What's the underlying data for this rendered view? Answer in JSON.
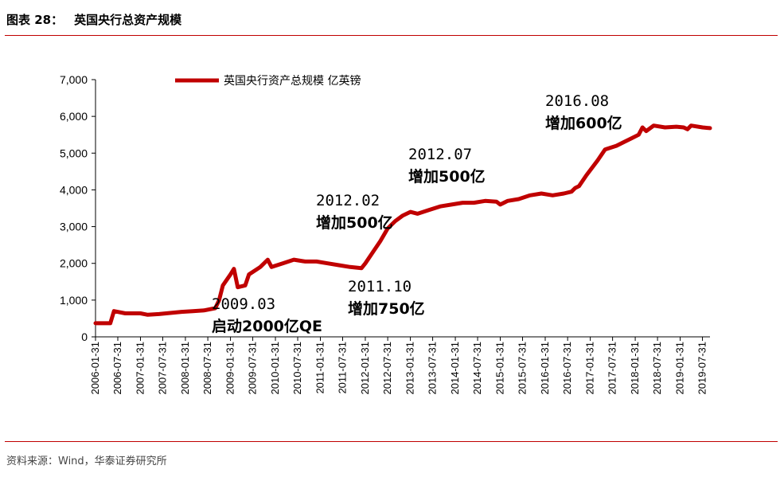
{
  "header": {
    "figure_number": "图表 28：",
    "title": "英国央行总资产规模"
  },
  "source": "资料来源：Wind，华泰证券研究所",
  "colors": {
    "series": "#c00000",
    "rule": "#c00000"
  },
  "chart_data": {
    "type": "line",
    "title": "英国央行总资产规模",
    "ylabel": "",
    "xlabel": "",
    "ylim": [
      0,
      7000
    ],
    "yticks": [
      0,
      1000,
      2000,
      3000,
      4000,
      5000,
      6000,
      7000
    ],
    "ytick_labels": [
      "0",
      "1,000",
      "2,000",
      "3,000",
      "4,000",
      "5,000",
      "6,000",
      "7,000"
    ],
    "xlim": [
      "2006-01-31",
      "2019-09-30"
    ],
    "xtick_labels": [
      "2006-01-31",
      "2006-07-31",
      "2007-01-31",
      "2007-07-31",
      "2008-01-31",
      "2008-07-31",
      "2009-01-31",
      "2009-07-31",
      "2010-01-31",
      "2010-07-31",
      "2011-01-31",
      "2011-07-31",
      "2012-01-31",
      "2012-07-31",
      "2013-01-31",
      "2013-07-31",
      "2014-01-31",
      "2014-07-31",
      "2015-01-31",
      "2015-07-31",
      "2016-01-31",
      "2016-07-31",
      "2017-01-31",
      "2017-07-31",
      "2018-01-31",
      "2018-07-31",
      "2019-01-31",
      "2019-07-31"
    ],
    "legend": {
      "position": "top-left"
    },
    "grid": false,
    "series": [
      {
        "name": "英国央行资产总规模 亿英镑",
        "color": "#c00000",
        "points": [
          [
            "2006-01-31",
            370
          ],
          [
            "2006-05-31",
            370
          ],
          [
            "2006-06-30",
            700
          ],
          [
            "2006-09-30",
            640
          ],
          [
            "2007-01-31",
            640
          ],
          [
            "2007-03-31",
            600
          ],
          [
            "2007-06-30",
            620
          ],
          [
            "2007-09-30",
            650
          ],
          [
            "2007-12-31",
            680
          ],
          [
            "2008-03-31",
            700
          ],
          [
            "2008-06-30",
            720
          ],
          [
            "2008-09-30",
            780
          ],
          [
            "2008-10-31",
            1000
          ],
          [
            "2008-11-30",
            1400
          ],
          [
            "2009-01-31",
            1700
          ],
          [
            "2009-02-28",
            1850
          ],
          [
            "2009-03-31",
            1350
          ],
          [
            "2009-05-31",
            1400
          ],
          [
            "2009-06-30",
            1700
          ],
          [
            "2009-09-30",
            1900
          ],
          [
            "2009-11-30",
            2100
          ],
          [
            "2009-12-31",
            1900
          ],
          [
            "2010-03-31",
            2000
          ],
          [
            "2010-06-30",
            2100
          ],
          [
            "2010-09-30",
            2050
          ],
          [
            "2010-12-31",
            2050
          ],
          [
            "2011-03-31",
            2000
          ],
          [
            "2011-06-30",
            1950
          ],
          [
            "2011-09-30",
            1900
          ],
          [
            "2011-12-31",
            1870
          ],
          [
            "2012-01-31",
            2000
          ],
          [
            "2012-03-31",
            2300
          ],
          [
            "2012-05-31",
            2600
          ],
          [
            "2012-07-31",
            2950
          ],
          [
            "2012-09-30",
            3150
          ],
          [
            "2012-11-30",
            3300
          ],
          [
            "2013-01-31",
            3400
          ],
          [
            "2013-03-31",
            3350
          ],
          [
            "2013-06-30",
            3450
          ],
          [
            "2013-09-30",
            3550
          ],
          [
            "2013-12-31",
            3600
          ],
          [
            "2014-03-31",
            3650
          ],
          [
            "2014-06-30",
            3650
          ],
          [
            "2014-09-30",
            3700
          ],
          [
            "2014-12-31",
            3680
          ],
          [
            "2015-01-31",
            3600
          ],
          [
            "2015-03-31",
            3700
          ],
          [
            "2015-06-30",
            3750
          ],
          [
            "2015-09-30",
            3850
          ],
          [
            "2015-12-31",
            3900
          ],
          [
            "2016-03-31",
            3850
          ],
          [
            "2016-06-30",
            3900
          ],
          [
            "2016-08-31",
            3950
          ],
          [
            "2016-09-30",
            4050
          ],
          [
            "2016-10-31",
            4100
          ],
          [
            "2016-12-31",
            4400
          ],
          [
            "2017-03-31",
            4800
          ],
          [
            "2017-05-31",
            5100
          ],
          [
            "2017-08-31",
            5200
          ],
          [
            "2017-10-31",
            5300
          ],
          [
            "2017-12-31",
            5400
          ],
          [
            "2018-02-28",
            5500
          ],
          [
            "2018-03-31",
            5700
          ],
          [
            "2018-04-30",
            5600
          ],
          [
            "2018-06-30",
            5750
          ],
          [
            "2018-09-30",
            5700
          ],
          [
            "2018-12-31",
            5720
          ],
          [
            "2019-02-28",
            5700
          ],
          [
            "2019-03-31",
            5650
          ],
          [
            "2019-04-30",
            5750
          ],
          [
            "2019-07-31",
            5700
          ],
          [
            "2019-09-30",
            5680
          ]
        ]
      }
    ],
    "annotations": [
      {
        "line1": "2009.03",
        "line2": "启动2000亿QE"
      },
      {
        "line1": "2011.10",
        "line2": "增加750亿"
      },
      {
        "line1": "2012.02",
        "line2": "增加500亿"
      },
      {
        "line1": "2012.07",
        "line2": "增加500亿"
      },
      {
        "line1": "2016.08",
        "line2": "增加600亿"
      }
    ]
  }
}
